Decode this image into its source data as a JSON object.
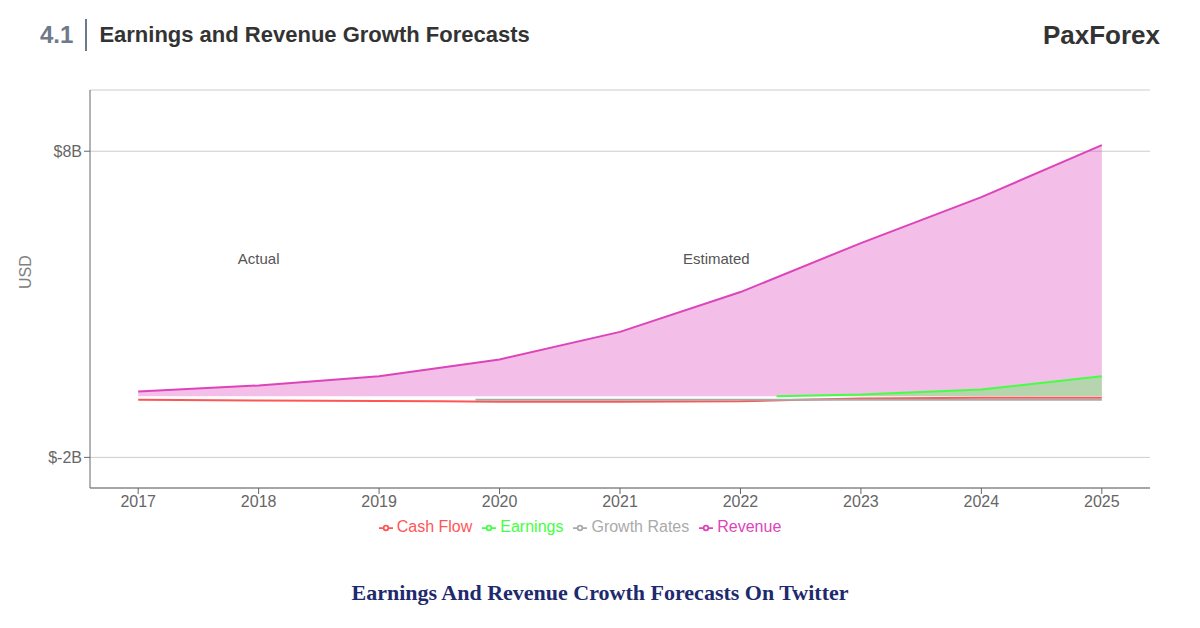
{
  "chart_data": {
    "type": "area",
    "title": "Earnings and Revenue Growth Forecasts",
    "ylabel": "USD",
    "xlim": [
      2016.6,
      2025.4
    ],
    "xticks": [
      2017,
      2018,
      2019,
      2020,
      2021,
      2022,
      2023,
      2024,
      2025
    ],
    "ylim": [
      -3.0,
      10.0
    ],
    "yticks": [
      {
        "value": -2,
        "label": "$-2B"
      },
      {
        "value": 8,
        "label": "$8B"
      }
    ],
    "grid": true,
    "series": [
      {
        "name": "Revenue",
        "type": "area",
        "color": "#dd44bb",
        "x": [
          2017,
          2018,
          2019,
          2020,
          2021,
          2022,
          2023,
          2024,
          2025
        ],
        "values": [
          0.15,
          0.35,
          0.65,
          1.2,
          2.1,
          3.4,
          5.0,
          6.5,
          8.2
        ]
      },
      {
        "name": "Cash Flow",
        "type": "line",
        "color": "#ff5555",
        "x": [
          2017,
          2018,
          2019,
          2019.5,
          2020,
          2021,
          2022,
          2022.5,
          2023,
          2024,
          2025
        ],
        "values": [
          -0.12,
          -0.14,
          -0.16,
          -0.17,
          -0.18,
          -0.18,
          -0.17,
          -0.12,
          -0.08,
          -0.05,
          -0.05
        ]
      },
      {
        "name": "Earnings",
        "type": "area",
        "color": "#44ff44",
        "x": [
          2022.3,
          2023,
          2024,
          2025
        ],
        "values": [
          0.0,
          0.05,
          0.22,
          0.65
        ]
      },
      {
        "name": "Growth Rates",
        "type": "line",
        "color": "#aaaaaa",
        "x": [
          2019.8,
          2025
        ],
        "values": [
          -0.12,
          -0.12
        ]
      }
    ],
    "annotations": [
      {
        "text": "4.1"
      },
      {
        "text": "PaxForex"
      },
      {
        "text": "Earnings And Revenue Crowth Forecasts On Twitter"
      },
      {
        "text": "Actual",
        "x": 2018.0,
        "y": 4.5
      },
      {
        "text": "Estimated",
        "x": 2021.8,
        "y": 4.5
      }
    ]
  }
}
